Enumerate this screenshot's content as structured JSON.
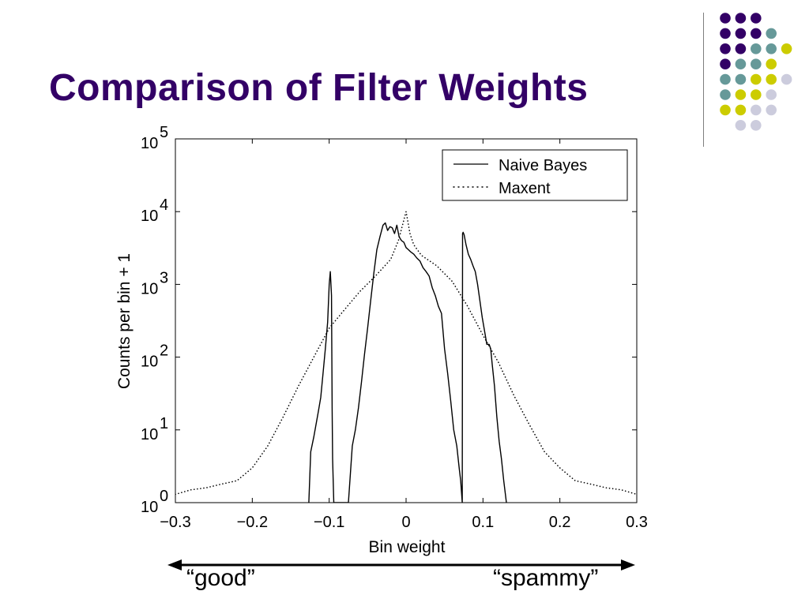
{
  "slide": {
    "title": "Comparison of Filter Weights",
    "title_color": "#330066",
    "accent_dots": {
      "colors": [
        "#330066",
        "#669999",
        "#cccc00",
        "#ccccdd"
      ],
      "rows": [
        [
          0,
          0,
          0
        ],
        [
          0,
          0,
          0,
          1
        ],
        [
          0,
          0,
          1,
          1,
          2
        ],
        [
          0,
          1,
          1,
          2
        ],
        [
          1,
          1,
          2,
          2,
          3
        ],
        [
          1,
          2,
          2,
          3
        ],
        [
          2,
          2,
          3,
          3
        ],
        [
          3,
          3
        ]
      ]
    }
  },
  "chart_data": {
    "type": "line",
    "xlabel": "Bin weight",
    "ylabel": "Counts per bin + 1",
    "xlim": [
      -0.3,
      0.3
    ],
    "ylim": [
      1,
      100000
    ],
    "yscale": "log",
    "x_ticks": [
      {
        "value": -0.3,
        "label": "−0.3"
      },
      {
        "value": -0.2,
        "label": "−0.2"
      },
      {
        "value": -0.1,
        "label": "−0.1"
      },
      {
        "value": 0,
        "label": "0"
      },
      {
        "value": 0.1,
        "label": "0.1"
      },
      {
        "value": 0.2,
        "label": "0.2"
      },
      {
        "value": 0.3,
        "label": "0.3"
      }
    ],
    "y_ticks": [
      {
        "value": 1,
        "base": "10",
        "exp": "0"
      },
      {
        "value": 10,
        "base": "10",
        "exp": "1"
      },
      {
        "value": 100,
        "base": "10",
        "exp": "2"
      },
      {
        "value": 1000,
        "base": "10",
        "exp": "3"
      },
      {
        "value": 10000,
        "base": "10",
        "exp": "4"
      },
      {
        "value": 100000,
        "base": "10",
        "exp": "5"
      }
    ],
    "legend": {
      "placement": "top-right"
    },
    "series": [
      {
        "name": "Naive Bayes",
        "style": "solid",
        "x": [
          -0.1265,
          -0.124,
          -0.12,
          -0.117,
          -0.114,
          -0.111,
          -0.108,
          -0.105,
          -0.102,
          -0.1,
          -0.0985,
          -0.097,
          -0.0962,
          -0.0955,
          -0.094,
          -0.075,
          -0.073,
          -0.07,
          -0.066,
          -0.062,
          -0.058,
          -0.054,
          -0.05,
          -0.046,
          -0.042,
          -0.038,
          -0.034,
          -0.03,
          -0.027,
          -0.024,
          -0.021,
          -0.018,
          -0.015,
          -0.012,
          -0.009,
          -0.006,
          -0.003,
          0,
          0.003,
          0.006,
          0.01,
          0.014,
          0.018,
          0.022,
          0.026,
          0.03,
          0.034,
          0.038,
          0.042,
          0.046,
          0.05,
          0.054,
          0.058,
          0.062,
          0.066,
          0.069,
          0.071,
          0.073,
          0.0735,
          0.0742,
          0.0755,
          0.078,
          0.081,
          0.084,
          0.087,
          0.09,
          0.093,
          0.096,
          0.099,
          0.102,
          0.105,
          0.108,
          0.11,
          0.112,
          0.115,
          0.118,
          0.121,
          0.124,
          0.127,
          0.1305
        ],
        "y": [
          1,
          5,
          8,
          12,
          18,
          28,
          60,
          130,
          300,
          1000,
          1500,
          700,
          20,
          4,
          1,
          1,
          2,
          6,
          10,
          20,
          45,
          110,
          250,
          600,
          1400,
          3000,
          4500,
          6500,
          7000,
          5500,
          6200,
          6000,
          5000,
          6500,
          4500,
          4000,
          3800,
          3200,
          3000,
          2800,
          2600,
          2300,
          2100,
          1700,
          1500,
          1300,
          900,
          700,
          500,
          400,
          130,
          60,
          25,
          10,
          6,
          3,
          2,
          1,
          5000,
          5200,
          4800,
          3500,
          2600,
          2200,
          1800,
          1500,
          1000,
          600,
          350,
          230,
          150,
          150,
          130,
          80,
          40,
          15,
          7,
          4,
          2,
          1
        ]
      },
      {
        "name": "Maxent",
        "style": "dotted",
        "x": [
          -0.3,
          -0.28,
          -0.26,
          -0.24,
          -0.22,
          -0.2,
          -0.18,
          -0.16,
          -0.14,
          -0.12,
          -0.1,
          -0.08,
          -0.06,
          -0.04,
          -0.02,
          -0.01,
          0,
          0.005,
          0.01,
          0.02,
          0.04,
          0.06,
          0.08,
          0.1,
          0.12,
          0.14,
          0.16,
          0.18,
          0.2,
          0.22,
          0.24,
          0.26,
          0.28,
          0.3
        ],
        "y": [
          1.3,
          1.5,
          1.6,
          1.8,
          2.0,
          3.0,
          6,
          15,
          40,
          100,
          250,
          450,
          800,
          1300,
          2200,
          4000,
          10000,
          5000,
          3500,
          2500,
          1800,
          1100,
          500,
          200,
          85,
          30,
          12,
          5,
          3,
          2,
          1.8,
          1.6,
          1.5,
          1.3
        ]
      }
    ],
    "annotations": {
      "left_label": "“good”",
      "right_label": "“spammy”"
    }
  }
}
